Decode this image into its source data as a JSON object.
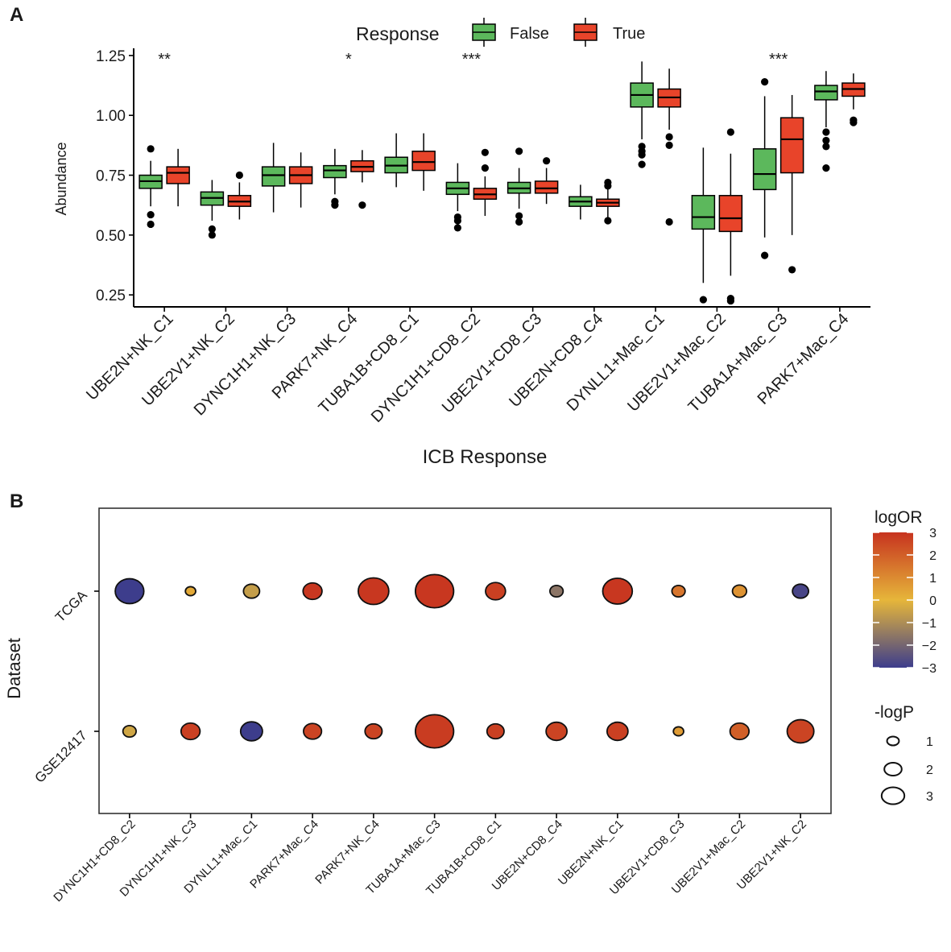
{
  "figure": {
    "panel_a_label": "A",
    "panel_b_label": "B"
  },
  "colors": {
    "false": "#5cb85c",
    "true": "#e8442a",
    "bubble_low": "#3d3d8c",
    "bubble_mid": "#e6b63a",
    "bubble_high": "#c7331f"
  },
  "chart_data": [
    {
      "type": "boxplot",
      "title": "",
      "xlabel": "ICB Response",
      "ylabel": "Abundance",
      "ylim": [
        0.2,
        1.28
      ],
      "yticks": [
        0.25,
        0.5,
        0.75,
        1.0,
        1.25
      ],
      "ytick_labels": [
        "0.25",
        "0.50",
        "0.75",
        "1.00",
        "1.25"
      ],
      "legend": {
        "title": "Response",
        "position": "top",
        "entries": [
          "False",
          "True"
        ]
      },
      "categories": [
        "UBE2N+NK_C1",
        "UBE2V1+NK_C2",
        "DYNC1H1+NK_C3",
        "PARK7+NK_C4",
        "TUBA1B+CD8_C1",
        "DYNC1H1+CD8_C2",
        "UBE2V1+CD8_C3",
        "UBE2N+CD8_C4",
        "DYNLL1+Mac_C1",
        "UBE2V1+Mac_C2",
        "TUBA1A+Mac_C3",
        "PARK7+Mac_C4"
      ],
      "significance": [
        "**",
        "",
        "",
        "*",
        "",
        "***",
        "",
        "",
        "",
        "",
        "***",
        ""
      ],
      "series": [
        {
          "name": "False",
          "boxes": [
            {
              "min": 0.62,
              "q1": 0.695,
              "median": 0.725,
              "q3": 0.75,
              "max": 0.81,
              "outliers": [
                0.86,
                0.585,
                0.545
              ]
            },
            {
              "min": 0.56,
              "q1": 0.625,
              "median": 0.655,
              "q3": 0.68,
              "max": 0.73,
              "outliers": [
                0.525,
                0.5
              ]
            },
            {
              "min": 0.595,
              "q1": 0.705,
              "median": 0.75,
              "q3": 0.785,
              "max": 0.885,
              "outliers": []
            },
            {
              "min": 0.67,
              "q1": 0.74,
              "median": 0.77,
              "q3": 0.79,
              "max": 0.86,
              "outliers": [
                0.64,
                0.625
              ]
            },
            {
              "min": 0.7,
              "q1": 0.76,
              "median": 0.79,
              "q3": 0.825,
              "max": 0.925,
              "outliers": []
            },
            {
              "min": 0.6,
              "q1": 0.67,
              "median": 0.695,
              "q3": 0.72,
              "max": 0.8,
              "outliers": [
                0.575,
                0.56,
                0.53
              ]
            },
            {
              "min": 0.61,
              "q1": 0.675,
              "median": 0.695,
              "q3": 0.72,
              "max": 0.78,
              "outliers": [
                0.85,
                0.58,
                0.555
              ]
            },
            {
              "min": 0.565,
              "q1": 0.62,
              "median": 0.64,
              "q3": 0.66,
              "max": 0.71,
              "outliers": []
            },
            {
              "min": 0.9,
              "q1": 1.035,
              "median": 1.085,
              "q3": 1.135,
              "max": 1.225,
              "outliers": [
                0.87,
                0.85,
                0.835,
                0.795
              ]
            },
            {
              "min": 0.3,
              "q1": 0.525,
              "median": 0.575,
              "q3": 0.665,
              "max": 0.865,
              "outliers": [
                0.23
              ]
            },
            {
              "min": 0.49,
              "q1": 0.69,
              "median": 0.755,
              "q3": 0.86,
              "max": 1.08,
              "outliers": [
                1.14,
                0.415
              ]
            },
            {
              "min": 0.95,
              "q1": 1.065,
              "median": 1.1,
              "q3": 1.125,
              "max": 1.185,
              "outliers": [
                0.93,
                0.895,
                0.87,
                0.78
              ]
            }
          ]
        },
        {
          "name": "True",
          "boxes": [
            {
              "min": 0.62,
              "q1": 0.715,
              "median": 0.76,
              "q3": 0.785,
              "max": 0.86,
              "outliers": []
            },
            {
              "min": 0.565,
              "q1": 0.62,
              "median": 0.64,
              "q3": 0.665,
              "max": 0.72,
              "outliers": [
                0.75
              ]
            },
            {
              "min": 0.615,
              "q1": 0.715,
              "median": 0.75,
              "q3": 0.785,
              "max": 0.845,
              "outliers": []
            },
            {
              "min": 0.72,
              "q1": 0.765,
              "median": 0.785,
              "q3": 0.81,
              "max": 0.855,
              "outliers": [
                0.625
              ]
            },
            {
              "min": 0.685,
              "q1": 0.77,
              "median": 0.805,
              "q3": 0.85,
              "max": 0.925,
              "outliers": []
            },
            {
              "min": 0.58,
              "q1": 0.65,
              "median": 0.67,
              "q3": 0.695,
              "max": 0.745,
              "outliers": [
                0.845,
                0.78
              ]
            },
            {
              "min": 0.63,
              "q1": 0.675,
              "median": 0.695,
              "q3": 0.725,
              "max": 0.78,
              "outliers": [
                0.81
              ]
            },
            {
              "min": 0.575,
              "q1": 0.62,
              "median": 0.635,
              "q3": 0.65,
              "max": 0.695,
              "outliers": [
                0.72,
                0.705,
                0.56
              ]
            },
            {
              "min": 0.94,
              "q1": 1.035,
              "median": 1.075,
              "q3": 1.11,
              "max": 1.195,
              "outliers": [
                0.91,
                0.875,
                0.555
              ]
            },
            {
              "min": 0.33,
              "q1": 0.515,
              "median": 0.57,
              "q3": 0.665,
              "max": 0.84,
              "outliers": [
                0.93,
                0.235,
                0.225
              ]
            },
            {
              "min": 0.5,
              "q1": 0.76,
              "median": 0.9,
              "q3": 0.99,
              "max": 1.085,
              "outliers": [
                0.355
              ]
            },
            {
              "min": 1.025,
              "q1": 1.08,
              "median": 1.11,
              "q3": 1.135,
              "max": 1.175,
              "outliers": [
                0.98,
                0.97
              ]
            }
          ]
        }
      ]
    },
    {
      "type": "bubble",
      "title": "",
      "xlabel": "",
      "ylabel": "Dataset",
      "categories": [
        "DYNC1H1+CD8_C2",
        "DYNC1H1+NK_C3",
        "DYNLL1+Mac_C1",
        "PARK7+Mac_C4",
        "PARK7+NK_C4",
        "TUBA1A+Mac_C3",
        "TUBA1B+CD8_C1",
        "UBE2N+CD8_C4",
        "UBE2N+NK_C1",
        "UBE2V1+CD8_C3",
        "UBE2V1+Mac_C2",
        "UBE2V1+NK_C2"
      ],
      "datasets": [
        "TCGA",
        "GSE12417"
      ],
      "color_legend": {
        "title": "logOR",
        "range": [
          -3,
          3
        ],
        "ticks": [
          "3",
          "2",
          "1",
          "0",
          "−1",
          "−2",
          "−3"
        ]
      },
      "size_legend": {
        "title": "-logP",
        "entries": [
          "1",
          "2",
          "3"
        ]
      },
      "points": {
        "TCGA": [
          {
            "logOR": -3.0,
            "negLogP": 2.3
          },
          {
            "logOR": 0.3,
            "negLogP": 0.4
          },
          {
            "logOR": -0.6,
            "negLogP": 1.0
          },
          {
            "logOR": 2.9,
            "negLogP": 1.3
          },
          {
            "logOR": 2.9,
            "negLogP": 2.5
          },
          {
            "logOR": 2.9,
            "negLogP": 3.3
          },
          {
            "logOR": 2.7,
            "negLogP": 1.4
          },
          {
            "logOR": -1.6,
            "negLogP": 0.7
          },
          {
            "logOR": 2.9,
            "negLogP": 2.4
          },
          {
            "logOR": 1.5,
            "negLogP": 0.7
          },
          {
            "logOR": 0.8,
            "negLogP": 0.8
          },
          {
            "logOR": -2.8,
            "negLogP": 1.0
          }
        ],
        "GSE12417": [
          {
            "logOR": -0.4,
            "negLogP": 0.7
          },
          {
            "logOR": 2.7,
            "negLogP": 1.3
          },
          {
            "logOR": -3.0,
            "negLogP": 1.6
          },
          {
            "logOR": 2.6,
            "negLogP": 1.2
          },
          {
            "logOR": 2.6,
            "negLogP": 1.1
          },
          {
            "logOR": 2.8,
            "negLogP": 3.3
          },
          {
            "logOR": 2.7,
            "negLogP": 1.1
          },
          {
            "logOR": 2.6,
            "negLogP": 1.5
          },
          {
            "logOR": 2.7,
            "negLogP": 1.5
          },
          {
            "logOR": 0.6,
            "negLogP": 0.4
          },
          {
            "logOR": 2.0,
            "negLogP": 1.3
          },
          {
            "logOR": 2.6,
            "negLogP": 2.1
          }
        ]
      }
    }
  ]
}
